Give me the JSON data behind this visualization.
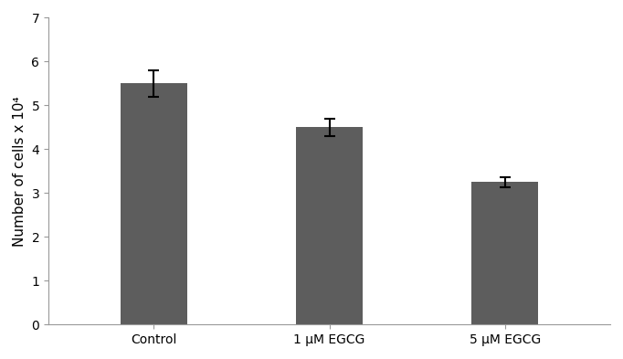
{
  "categories": [
    "Control",
    "1 μM EGCG",
    "5 μM EGCG"
  ],
  "values": [
    5.5,
    4.5,
    3.25
  ],
  "errors": [
    0.3,
    0.2,
    0.12
  ],
  "bar_color": "#5d5d5d",
  "bar_width": 0.38,
  "ylabel": "Number of cells x 10⁴",
  "ylim": [
    0,
    7
  ],
  "yticks": [
    0,
    1,
    2,
    3,
    4,
    5,
    6,
    7
  ],
  "background_color": "#ffffff",
  "error_capsize": 4,
  "error_color": "black",
  "error_linewidth": 1.5,
  "tick_fontsize": 10,
  "label_fontsize": 11,
  "spine_color": "#999999"
}
